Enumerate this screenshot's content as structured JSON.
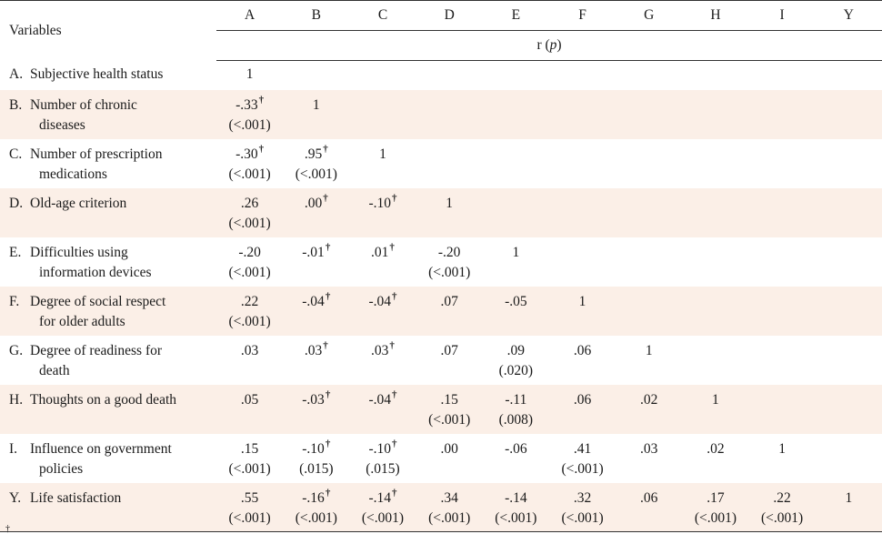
{
  "header": {
    "variables_label": "Variables",
    "columns": [
      "A",
      "B",
      "C",
      "D",
      "E",
      "F",
      "G",
      "H",
      "I",
      "Y"
    ],
    "stat_label_r": "r (",
    "stat_label_p": "p",
    "stat_label_close": ")"
  },
  "rows": [
    {
      "letter": "A.",
      "line1": "Subjective health status",
      "line2": "",
      "shade": false,
      "cells": [
        {
          "v": "1",
          "p": "",
          "dag": false
        }
      ]
    },
    {
      "letter": "B.",
      "line1": "Number of chronic",
      "line2": "diseases",
      "shade": true,
      "cells": [
        {
          "v": "-.33",
          "p": "(<.001)",
          "dag": true
        },
        {
          "v": "1",
          "p": "",
          "dag": false
        }
      ]
    },
    {
      "letter": "C.",
      "line1": "Number of prescription",
      "line2": "medications",
      "shade": false,
      "cells": [
        {
          "v": "-.30",
          "p": "(<.001)",
          "dag": true
        },
        {
          "v": ".95",
          "p": "(<.001)",
          "dag": true
        },
        {
          "v": "1",
          "p": "",
          "dag": false
        }
      ]
    },
    {
      "letter": "D.",
      "line1": "Old-age criterion",
      "line2": "",
      "shade": true,
      "cells": [
        {
          "v": ".26",
          "p": "(<.001)",
          "dag": false
        },
        {
          "v": ".00",
          "p": "",
          "dag": true
        },
        {
          "v": "-.10",
          "p": "",
          "dag": true
        },
        {
          "v": "1",
          "p": "",
          "dag": false
        }
      ]
    },
    {
      "letter": "E.",
      "line1": "Difficulties using",
      "line2": "information devices",
      "shade": false,
      "cells": [
        {
          "v": "-.20",
          "p": "(<.001)",
          "dag": false
        },
        {
          "v": "-.01",
          "p": "",
          "dag": true
        },
        {
          "v": ".01",
          "p": "",
          "dag": true
        },
        {
          "v": "-.20",
          "p": "(<.001)",
          "dag": false
        },
        {
          "v": "1",
          "p": "",
          "dag": false
        }
      ]
    },
    {
      "letter": "F.",
      "line1": "Degree of social respect",
      "line2": "for older adults",
      "shade": true,
      "cells": [
        {
          "v": ".22",
          "p": "(<.001)",
          "dag": false
        },
        {
          "v": "-.04",
          "p": "",
          "dag": true
        },
        {
          "v": "-.04",
          "p": "",
          "dag": true
        },
        {
          "v": ".07",
          "p": "",
          "dag": false
        },
        {
          "v": "-.05",
          "p": "",
          "dag": false
        },
        {
          "v": "1",
          "p": "",
          "dag": false
        }
      ]
    },
    {
      "letter": "G.",
      "line1": "Degree of readiness for",
      "line2": "death",
      "shade": false,
      "cells": [
        {
          "v": ".03",
          "p": "",
          "dag": false
        },
        {
          "v": ".03",
          "p": "",
          "dag": true
        },
        {
          "v": ".03",
          "p": "",
          "dag": true
        },
        {
          "v": ".07",
          "p": "",
          "dag": false
        },
        {
          "v": ".09",
          "p": "(.020)",
          "dag": false
        },
        {
          "v": ".06",
          "p": "",
          "dag": false
        },
        {
          "v": "1",
          "p": "",
          "dag": false
        }
      ]
    },
    {
      "letter": "H.",
      "line1": "Thoughts on a good death",
      "line2": "",
      "shade": true,
      "cells": [
        {
          "v": ".05",
          "p": "",
          "dag": false
        },
        {
          "v": "-.03",
          "p": "",
          "dag": true
        },
        {
          "v": "-.04",
          "p": "",
          "dag": true
        },
        {
          "v": ".15",
          "p": "(<.001)",
          "dag": false
        },
        {
          "v": "-.11",
          "p": "(.008)",
          "dag": false
        },
        {
          "v": ".06",
          "p": "",
          "dag": false
        },
        {
          "v": ".02",
          "p": "",
          "dag": false
        },
        {
          "v": "1",
          "p": "",
          "dag": false
        }
      ]
    },
    {
      "letter": "I.",
      "line1": "Influence on government",
      "line2": "policies",
      "shade": false,
      "cells": [
        {
          "v": ".15",
          "p": "(<.001)",
          "dag": false
        },
        {
          "v": "-.10",
          "p": "(.015)",
          "dag": true
        },
        {
          "v": "-.10",
          "p": "(.015)",
          "dag": true
        },
        {
          "v": ".00",
          "p": "",
          "dag": false
        },
        {
          "v": "-.06",
          "p": "",
          "dag": false
        },
        {
          "v": ".41",
          "p": "(<.001)",
          "dag": false
        },
        {
          "v": ".03",
          "p": "",
          "dag": false
        },
        {
          "v": ".02",
          "p": "",
          "dag": false
        },
        {
          "v": "1",
          "p": "",
          "dag": false
        }
      ]
    },
    {
      "letter": "Y.",
      "line1": "Life satisfaction",
      "line2": "",
      "shade": true,
      "cells": [
        {
          "v": ".55",
          "p": "(<.001)",
          "dag": false
        },
        {
          "v": "-.16",
          "p": "(<.001)",
          "dag": true
        },
        {
          "v": "-.14",
          "p": "(<.001)",
          "dag": true
        },
        {
          "v": ".34",
          "p": "(<.001)",
          "dag": false
        },
        {
          "v": "-.14",
          "p": "(<.001)",
          "dag": false
        },
        {
          "v": ".32",
          "p": "(<.001)",
          "dag": false
        },
        {
          "v": ".06",
          "p": "",
          "dag": false
        },
        {
          "v": ".17",
          "p": "(<.001)",
          "dag": false
        },
        {
          "v": ".22",
          "p": "(<.001)",
          "dag": false
        },
        {
          "v": "1",
          "p": "",
          "dag": false
        }
      ]
    }
  ],
  "dagger_symbol": "†",
  "footnote": "†"
}
